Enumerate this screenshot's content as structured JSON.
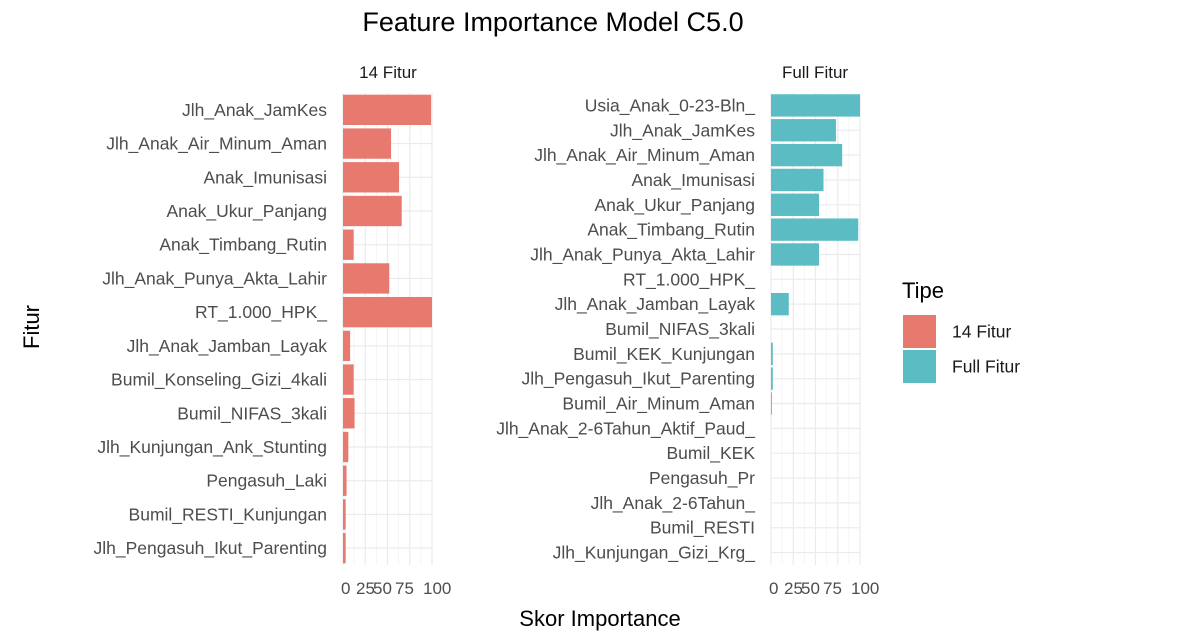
{
  "chart_data": {
    "type": "bar",
    "orientation": "horizontal",
    "title": "Feature Importance Model C5.0",
    "xlabel": "Skor Importance",
    "ylabel": "Fitur",
    "xlim": [
      0,
      100
    ],
    "x_ticks": [
      "0",
      "25",
      "50",
      "75",
      "100"
    ],
    "grid": true,
    "legend": {
      "title": "Tipe",
      "placement": "right",
      "entries": [
        {
          "label": "14 Fitur",
          "color": "#F8766D"
        },
        {
          "label": "Full Fitur",
          "color": "#00BFC4"
        }
      ]
    },
    "panels": [
      {
        "name": "14 Fitur",
        "color": "#E8796F",
        "categories": [
          "Jlh_Anak_JamKes",
          "Jlh_Anak_Air_Minum_Aman",
          "Anak_Imunisasi",
          "Anak_Ukur_Panjang",
          "Anak_Timbang_Rutin",
          "Jlh_Anak_Punya_Akta_Lahir",
          "RT_1.000_HPK_",
          "Jlh_Anak_Jamban_Layak",
          "Bumil_Konseling_Gizi_4kali",
          "Bumil_NIFAS_3kali",
          "Jlh_Kunjungan_Ank_Stunting",
          "Pengasuh_Laki",
          "Bumil_RESTI_Kunjungan",
          "Jlh_Pengasuh_Ikut_Parenting"
        ],
        "values": [
          99,
          54,
          63,
          66,
          12,
          52,
          100,
          8,
          12,
          13,
          6,
          4,
          3,
          3
        ]
      },
      {
        "name": "Full Fitur",
        "color": "#5BBDC3",
        "categories": [
          "Usia_Anak_0-23-Bln_",
          "Jlh_Anak_JamKes",
          "Jlh_Anak_Air_Minum_Aman",
          "Anak_Imunisasi",
          "Anak_Ukur_Panjang",
          "Anak_Timbang_Rutin",
          "Jlh_Anak_Punya_Akta_Lahir",
          "RT_1.000_HPK_",
          "Jlh_Anak_Jamban_Layak",
          "Bumil_NIFAS_3kali",
          "Bumil_KEK_Kunjungan",
          "Jlh_Pengasuh_Ikut_Parenting",
          "Bumil_Air_Minum_Aman",
          "Jlh_Anak_2-6Tahun_Aktif_Paud_",
          "Bumil_KEK",
          "Pengasuh_Pr",
          "Jlh_Anak_2-6Tahun_",
          "Bumil_RESTI",
          "Jlh_Kunjungan_Gizi_Krg_"
        ],
        "values": [
          100,
          73,
          80,
          59,
          54,
          98,
          54,
          0,
          20,
          0,
          2,
          2,
          1,
          0,
          0,
          0,
          0,
          0,
          0
        ]
      }
    ]
  }
}
